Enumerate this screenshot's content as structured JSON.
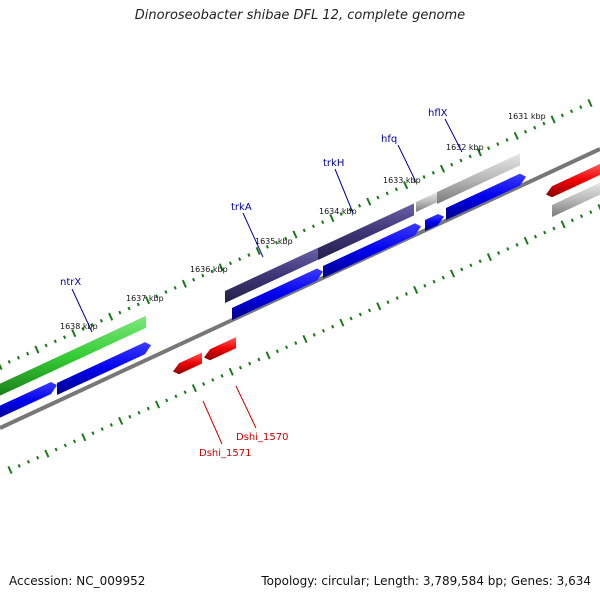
{
  "title": "Dinoroseobacter shibae DFL 12, complete genome",
  "footer": {
    "accession": "Accession: NC_009952",
    "summary": "Topology: circular; Length: 3,789,584 bp; Genes: 3,634"
  },
  "colors": {
    "forward_gene": "#0000ff",
    "reverse_gene": "#ff0000",
    "operon_green": "#33cc33",
    "operon_purple": "#3d3575",
    "operon_grey": "#b8b8b8",
    "tick": "#1a7a1a",
    "label_forward": "#000099",
    "label_reverse": "#cc0000",
    "backbone": "#777777"
  },
  "kbp_ticks": [
    {
      "label": "1631 kbp"
    },
    {
      "label": "1632 kbp"
    },
    {
      "label": "1633 kbp"
    },
    {
      "label": "1634 kbp"
    },
    {
      "label": "1635 kbp"
    },
    {
      "label": "1636 kbp"
    },
    {
      "label": "1637 kbp"
    },
    {
      "label": "1638 kbp"
    }
  ],
  "gene_labels": [
    {
      "name": "ntrX",
      "strand": "forward"
    },
    {
      "name": "trkA",
      "strand": "forward"
    },
    {
      "name": "trkH",
      "strand": "forward"
    },
    {
      "name": "hfq",
      "strand": "forward"
    },
    {
      "name": "hflX",
      "strand": "forward"
    },
    {
      "name": "Dshi_1570",
      "strand": "reverse"
    },
    {
      "name": "Dshi_1571",
      "strand": "reverse"
    }
  ]
}
